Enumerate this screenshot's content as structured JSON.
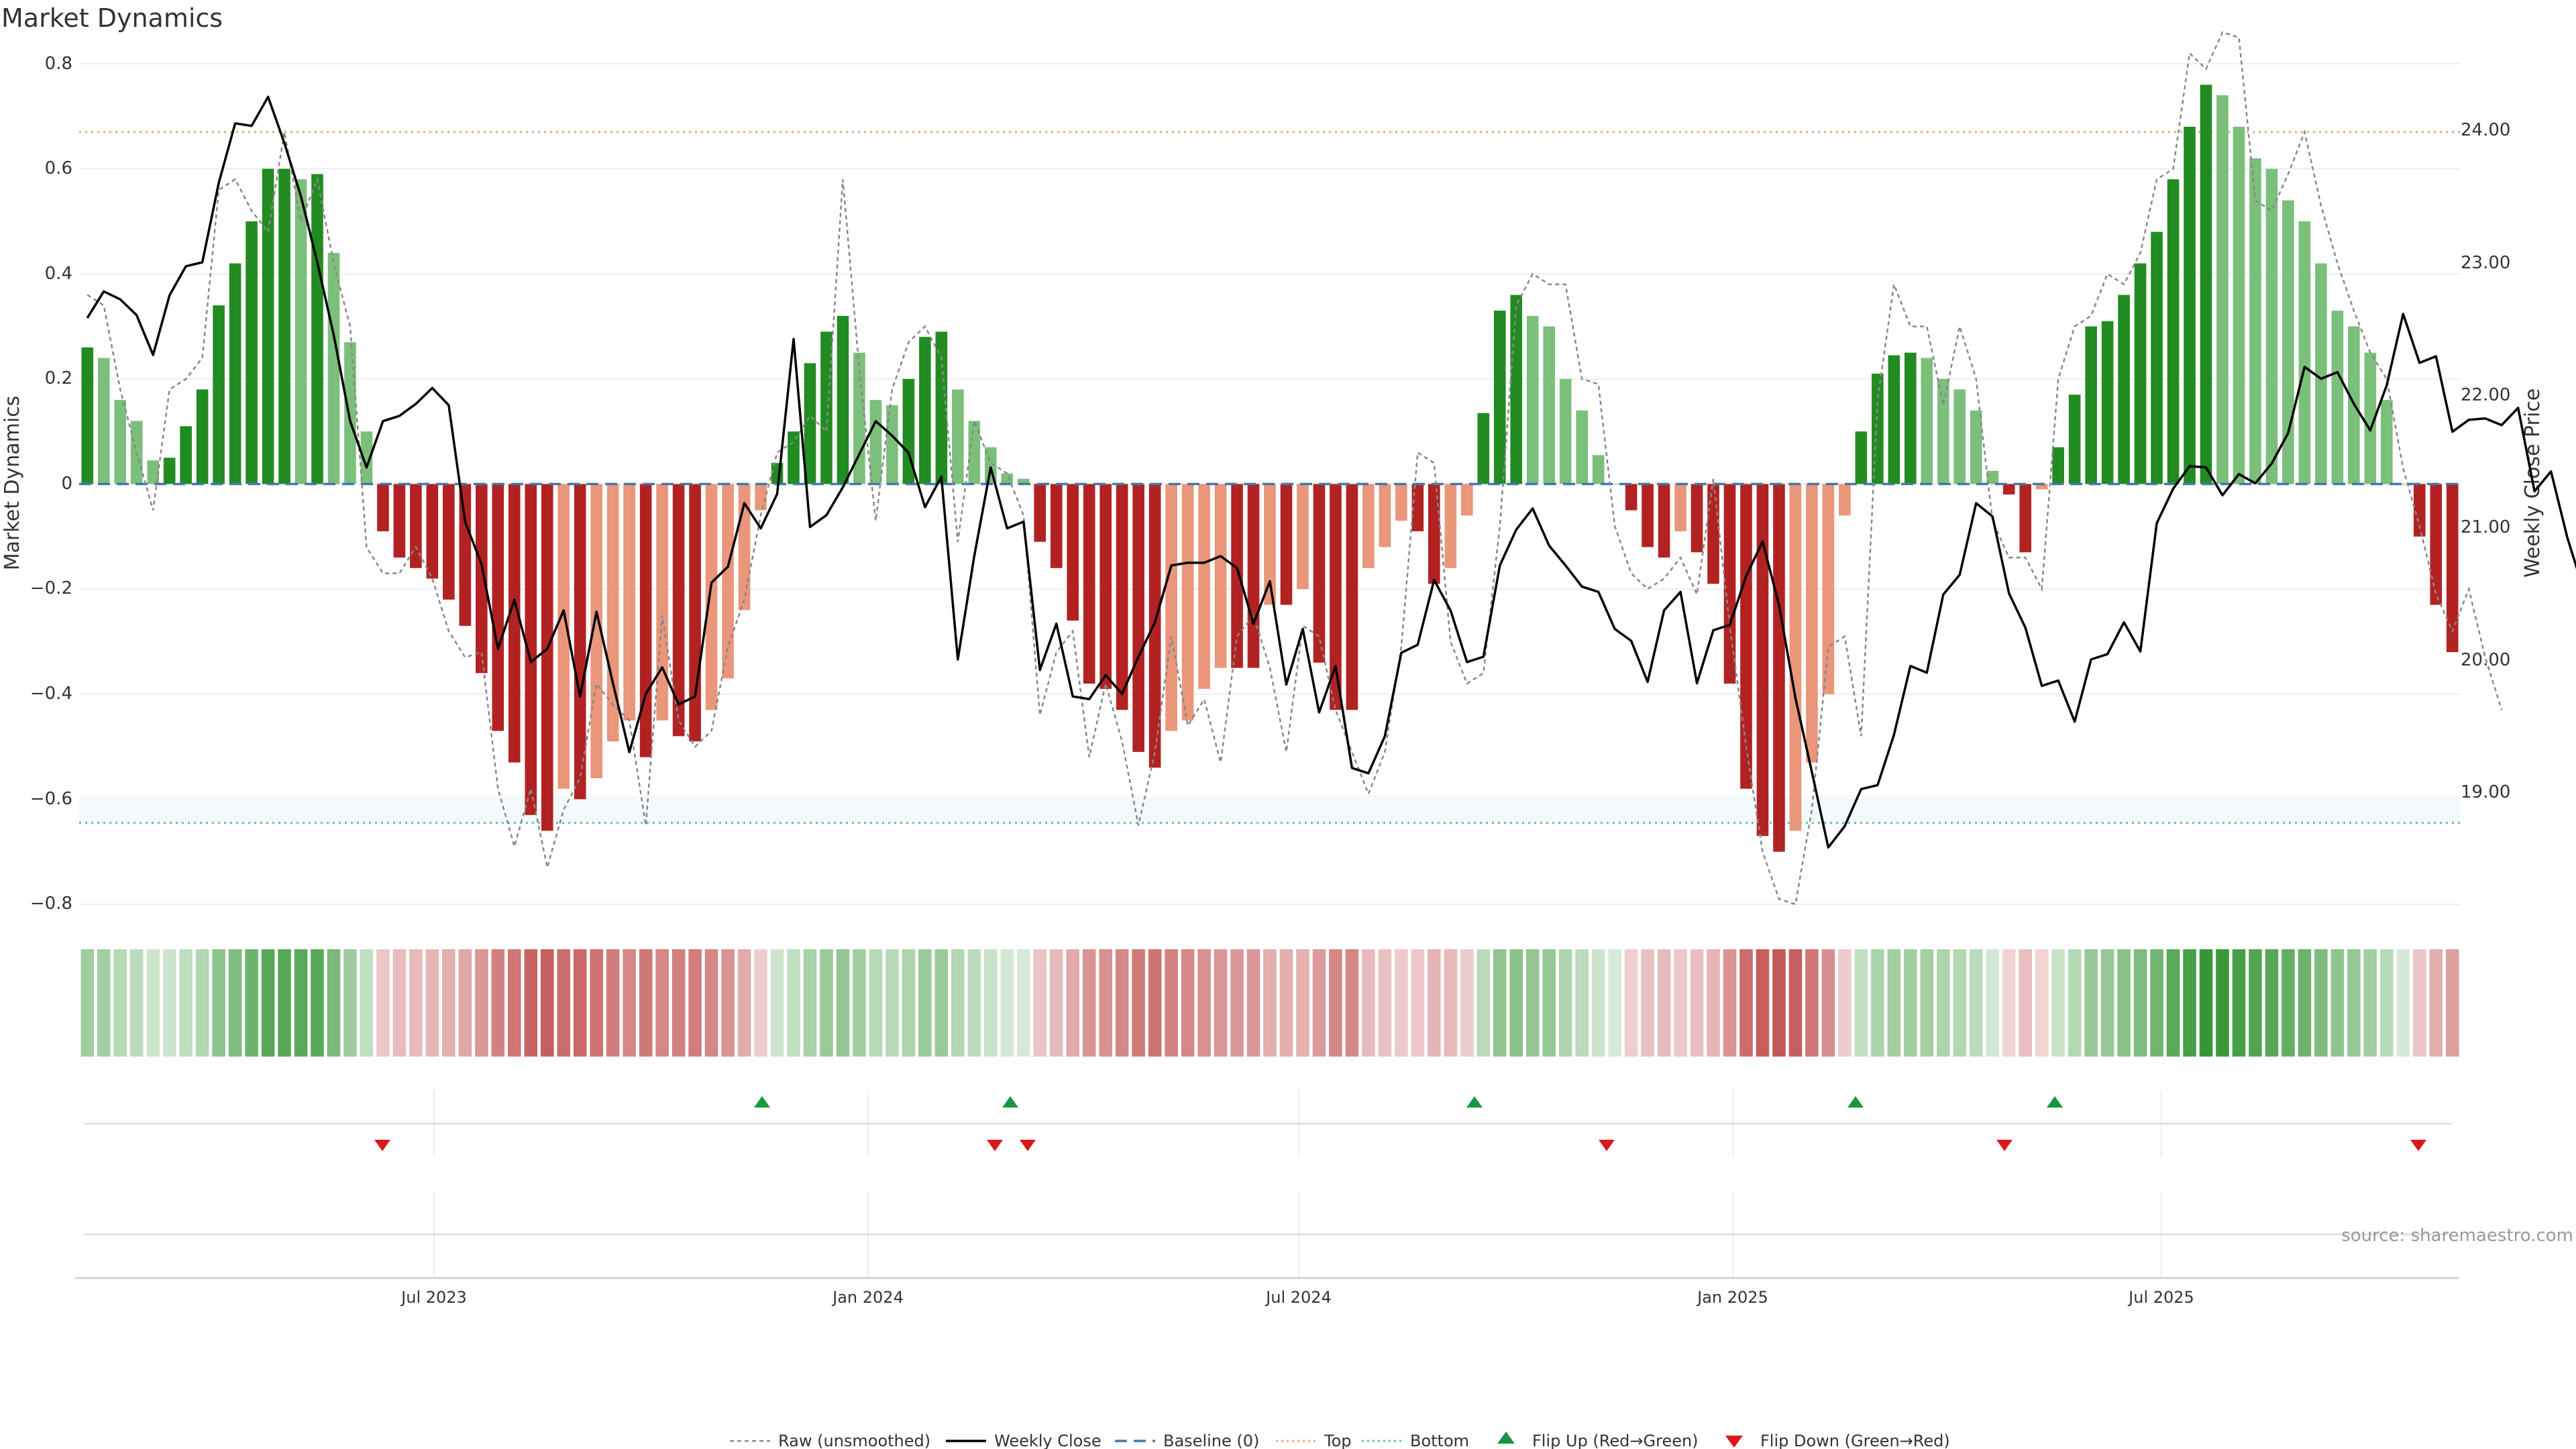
{
  "chart_data": {
    "type": "bar",
    "title": "Market Dynamics",
    "ylabel": "Market Dynamics",
    "ylabel_right": "Weekly Close Price",
    "ylim": [
      -0.8,
      0.8
    ],
    "ylim_right": [
      18.15,
      24.5
    ],
    "y_ticks": [
      "0.8",
      "0.6",
      "0.4",
      "0.2",
      "0",
      "−0.2",
      "−0.4",
      "−0.6",
      "−0.8"
    ],
    "y_right_ticks": [
      "24.00",
      "23.00",
      "22.00",
      "21.00",
      "20.00",
      "19.00"
    ],
    "x_ticks": [
      "Jul 2023",
      "Jan 2024",
      "Jul 2024",
      "Jan 2025",
      "Jul 2025"
    ],
    "top_line": 0.67,
    "bottom_line": -0.645,
    "start_week_of_2023": 12,
    "bars": [
      0.26,
      0.24,
      0.16,
      0.12,
      0.045,
      0.05,
      0.11,
      0.18,
      0.34,
      0.42,
      0.5,
      0.6,
      0.6,
      0.58,
      0.59,
      0.44,
      0.27,
      0.1,
      -0.09,
      -0.14,
      -0.16,
      -0.18,
      -0.22,
      -0.27,
      -0.36,
      -0.47,
      -0.53,
      -0.63,
      -0.66,
      -0.58,
      -0.6,
      -0.56,
      -0.49,
      -0.45,
      -0.52,
      -0.45,
      -0.48,
      -0.49,
      -0.43,
      -0.37,
      -0.24,
      -0.05,
      0.04,
      0.1,
      0.23,
      0.29,
      0.32,
      0.25,
      0.16,
      0.15,
      0.2,
      0.28,
      0.29,
      0.18,
      0.12,
      0.07,
      0.02,
      0.01,
      -0.11,
      -0.16,
      -0.26,
      -0.38,
      -0.39,
      -0.43,
      -0.51,
      -0.54,
      -0.47,
      -0.45,
      -0.39,
      -0.35,
      -0.35,
      -0.35,
      -0.23,
      -0.23,
      -0.2,
      -0.34,
      -0.43,
      -0.43,
      -0.16,
      -0.12,
      -0.07,
      -0.09,
      -0.19,
      -0.16,
      -0.06,
      0.135,
      0.33,
      0.36,
      0.32,
      0.3,
      0.2,
      0.14,
      0.055,
      0,
      -0.05,
      -0.12,
      -0.14,
      -0.09,
      -0.13,
      -0.19,
      -0.38,
      -0.58,
      -0.67,
      -0.7,
      -0.66,
      -0.53,
      -0.4,
      -0.06,
      0.1,
      0.21,
      0.245,
      0.25,
      0.24,
      0.2,
      0.18,
      0.14,
      0.025,
      -0.02,
      -0.13,
      -0.01,
      0.07,
      0.17,
      0.3,
      0.31,
      0.36,
      0.42,
      0.48,
      0.58,
      0.68,
      0.76,
      0.74,
      0.68,
      0.62,
      0.6,
      0.54,
      0.5,
      0.42,
      0.33,
      0.3,
      0.25,
      0.16,
      0,
      -0.1,
      -0.23,
      -0.32
    ],
    "weekly_close": [
      22.58,
      22.78,
      22.72,
      22.6,
      22.3,
      22.75,
      22.97,
      23.0,
      23.6,
      24.05,
      24.03,
      24.25,
      23.9,
      23.5,
      23.0,
      22.45,
      21.8,
      21.45,
      21.8,
      21.84,
      21.93,
      22.05,
      21.92,
      21.04,
      20.72,
      20.08,
      20.45,
      19.98,
      20.08,
      20.37,
      19.72,
      20.36,
      19.82,
      19.3,
      19.74,
      19.94,
      19.66,
      19.72,
      20.58,
      20.7,
      21.18,
      20.99,
      21.25,
      22.42,
      21.0,
      21.09,
      21.3,
      21.55,
      21.8,
      21.69,
      21.56,
      21.15,
      21.38,
      20.0,
      20.78,
      21.45,
      20.99,
      21.04,
      19.92,
      20.27,
      19.72,
      19.7,
      19.88,
      19.74,
      20.02,
      20.28,
      20.71,
      20.73,
      20.73,
      20.78,
      20.69,
      20.27,
      20.59,
      19.81,
      20.23,
      19.6,
      19.95,
      19.18,
      19.14,
      19.42,
      20.05,
      20.11,
      20.6,
      20.37,
      19.98,
      20.02,
      20.71,
      20.98,
      21.14,
      20.86,
      20.71,
      20.55,
      20.51,
      20.23,
      20.14,
      19.83,
      20.37,
      20.51,
      19.82,
      20.22,
      20.26,
      20.63,
      20.89,
      20.41,
      19.71,
      19.15,
      18.58,
      18.74,
      19.02,
      19.05,
      19.43,
      19.95,
      19.9,
      20.49,
      20.64,
      21.18,
      21.08,
      20.5,
      20.24,
      19.8,
      19.84,
      19.53,
      20.0,
      20.04,
      20.28,
      20.06,
      21.03,
      21.29,
      21.46,
      21.45,
      21.24,
      21.4,
      21.33,
      21.48,
      21.71,
      22.21,
      22.12,
      22.17,
      21.93,
      21.73,
      22.07,
      22.61,
      22.24,
      22.29,
      21.72,
      21.81,
      21.82,
      21.77,
      21.9,
      21.27,
      21.42,
      20.92,
      20.52
    ],
    "raw": [
      0.36,
      0.34,
      0.18,
      0.06,
      -0.05,
      0.18,
      0.2,
      0.24,
      0.56,
      0.58,
      0.52,
      0.48,
      0.67,
      0.5,
      0.58,
      0.42,
      0.3,
      -0.12,
      -0.17,
      -0.17,
      -0.12,
      -0.18,
      -0.28,
      -0.33,
      -0.32,
      -0.58,
      -0.69,
      -0.58,
      -0.73,
      -0.62,
      -0.56,
      -0.38,
      -0.42,
      -0.45,
      -0.65,
      -0.25,
      -0.45,
      -0.5,
      -0.47,
      -0.31,
      -0.22,
      -0.06,
      0.06,
      0.08,
      0.13,
      0.1,
      0.58,
      0.22,
      -0.07,
      0.18,
      0.27,
      0.3,
      0.24,
      -0.11,
      0.12,
      0.04,
      0.02,
      -0.06,
      -0.44,
      -0.32,
      -0.28,
      -0.52,
      -0.38,
      -0.49,
      -0.65,
      -0.51,
      -0.29,
      -0.46,
      -0.41,
      -0.53,
      -0.29,
      -0.25,
      -0.35,
      -0.51,
      -0.27,
      -0.29,
      -0.43,
      -0.51,
      -0.59,
      -0.51,
      -0.31,
      0.06,
      0.04,
      -0.3,
      -0.38,
      -0.36,
      -0.08,
      0.34,
      0.4,
      0.38,
      0.38,
      0.2,
      0.19,
      -0.08,
      -0.17,
      -0.2,
      -0.18,
      -0.14,
      -0.21,
      0.01,
      -0.27,
      -0.5,
      -0.7,
      -0.79,
      -0.8,
      -0.62,
      -0.31,
      -0.29,
      -0.48,
      0.16,
      0.38,
      0.3,
      0.3,
      0.15,
      0.3,
      0.2,
      -0.07,
      -0.14,
      -0.14,
      -0.2,
      0.2,
      0.3,
      0.32,
      0.4,
      0.38,
      0.44,
      0.58,
      0.6,
      0.82,
      0.79,
      0.86,
      0.85,
      0.54,
      0.52,
      0.59,
      0.67,
      0.53,
      0.42,
      0.33,
      0.25,
      0.2,
      0.03,
      -0.08,
      -0.21,
      -0.28,
      -0.2,
      -0.33,
      -0.43
    ],
    "flip_up": [
      "Nov 2023",
      "Mar 2024",
      "Sep 2024",
      "Mar 2025",
      "May 2025"
    ],
    "flip_down": [
      "Jun 2023",
      "Mar 2024",
      "Apr 2024",
      "Nov 2024",
      "Apr 2025",
      "Oct 2025"
    ],
    "legend": [
      "Raw (unsmoothed)",
      "Weekly Close",
      "Baseline (0)",
      "Top",
      "Bottom",
      "Flip Up (Red→Green)",
      "Flip Down (Green→Red)"
    ],
    "source": "source: sharemaestro.com"
  },
  "colors": {
    "green_strong": "#228b22",
    "green_soft": "#7bbf7b",
    "red_strong": "#b22222",
    "red_soft": "#e9967a",
    "close_line": "#000000",
    "raw_line": "#888888",
    "baseline": "#4477aa",
    "top": "#e8a87c",
    "bottom": "#5bc0c8",
    "flip_up": "#1a9641",
    "flip_down": "#d7191c"
  }
}
